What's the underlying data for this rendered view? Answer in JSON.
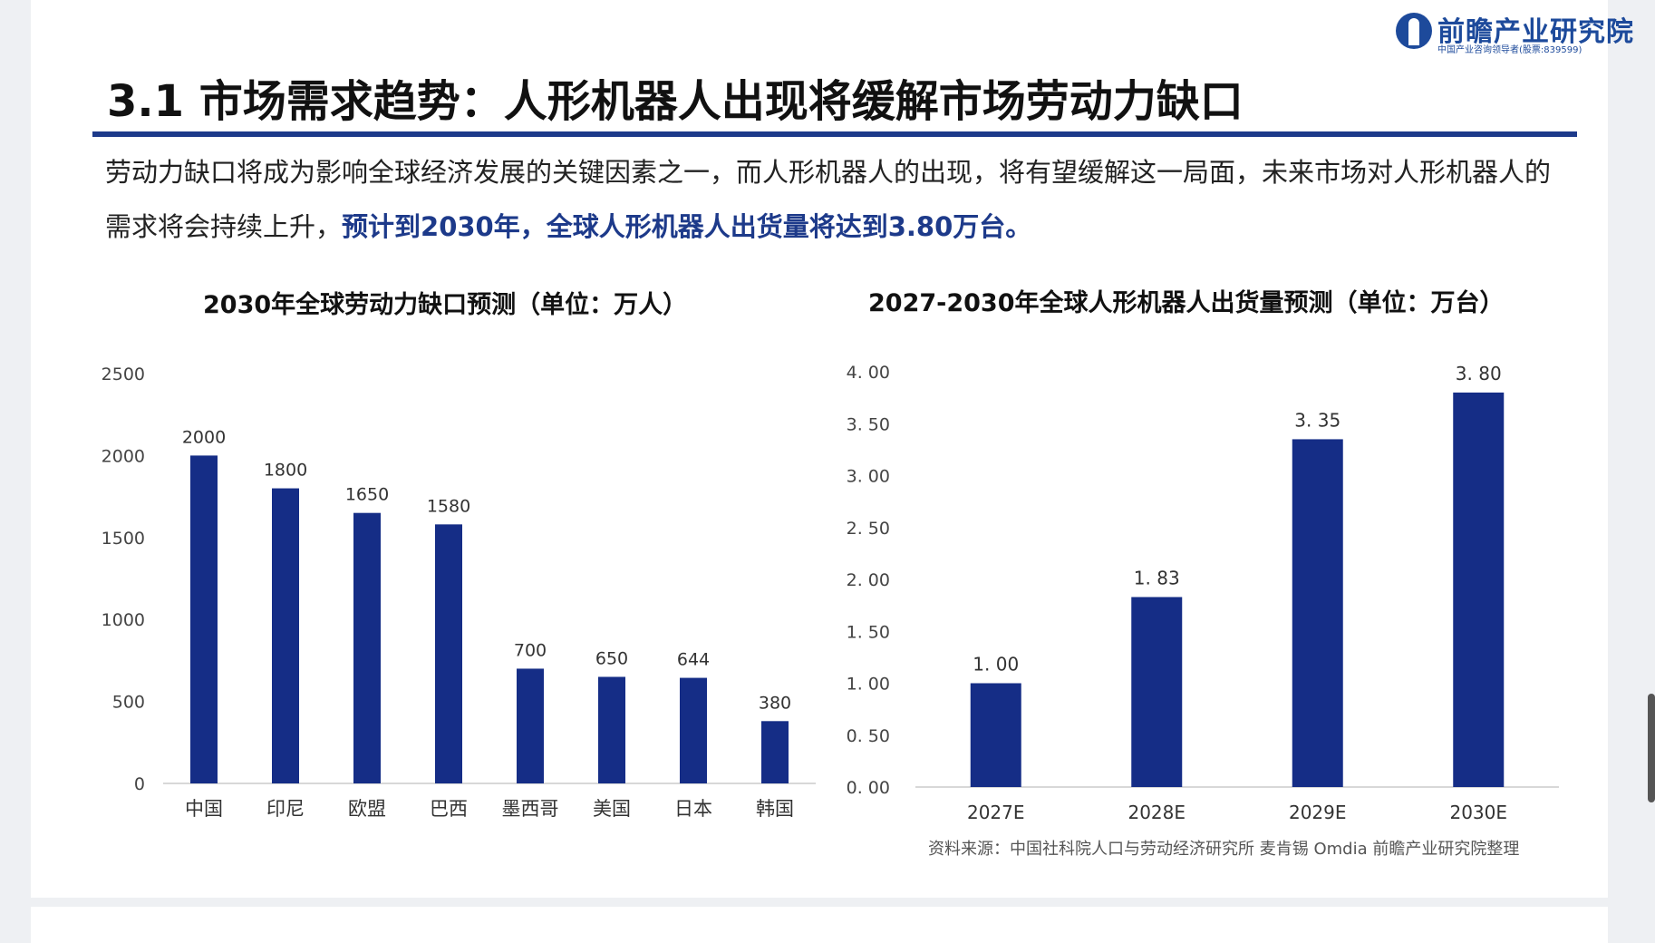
{
  "logo": {
    "name": "前瞻产业研究院",
    "subtitle": "中国产业咨询领导者(股票:839599)"
  },
  "page": {
    "title": "3.1 市场需求趋势：人形机器人出现将缓解市场劳动力缺口",
    "intro_normal": "劳动力缺口将成为影响全球经济发展的关键因素之一，而人形机器人的出现，将有望缓解这一局面，未来市场对人形机器人的需求将会持续上升，",
    "intro_highlight": "预计到2030年，全球人形机器人出货量将达到3.80万台。",
    "source": "资料来源：中国社科院人口与劳动经济研究所 麦肯锡 Omdia 前瞻产业研究院整理"
  },
  "colors": {
    "bar": "#152d86",
    "accent": "#1d3a8a"
  },
  "chart_data": [
    {
      "type": "bar",
      "title": "2030年全球劳动力缺口预测（单位：万人）",
      "categories": [
        "中国",
        "印尼",
        "欧盟",
        "巴西",
        "墨西哥",
        "美国",
        "日本",
        "韩国"
      ],
      "values": [
        2000,
        1800,
        1650,
        1580,
        700,
        650,
        644,
        380
      ],
      "value_labels": [
        "2000",
        "1800",
        "1650",
        "1580",
        "700",
        "650",
        "644",
        "380"
      ],
      "yticks": [
        "0",
        "500",
        "1000",
        "1500",
        "2000",
        "2500"
      ],
      "ylim": [
        0,
        2500
      ],
      "grid": false
    },
    {
      "type": "bar",
      "title": "2027-2030年全球人形机器人出货量预测（单位：万台）",
      "categories": [
        "2027E",
        "2028E",
        "2029E",
        "2030E"
      ],
      "values": [
        1.0,
        1.83,
        3.35,
        3.8
      ],
      "value_labels": [
        "1. 00",
        "1. 83",
        "3. 35",
        "3. 80"
      ],
      "yticks": [
        "0. 00",
        "0. 50",
        "1. 00",
        "1. 50",
        "2. 00",
        "2. 50",
        "3. 00",
        "3. 50",
        "4. 00"
      ],
      "ylim": [
        0,
        4
      ],
      "grid": false
    }
  ]
}
